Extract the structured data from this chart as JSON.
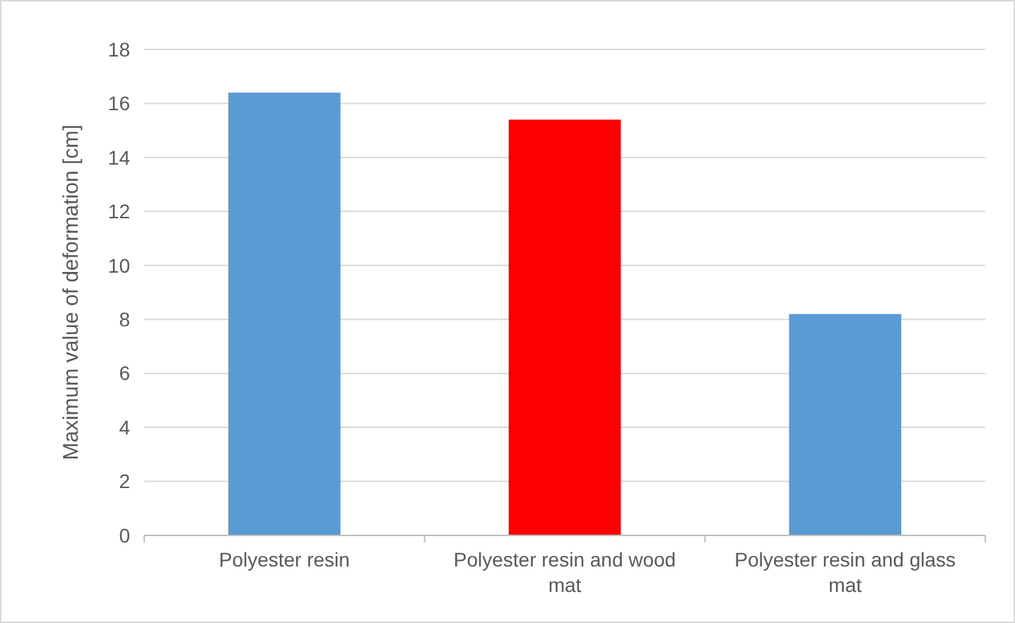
{
  "chart_data": {
    "type": "bar",
    "ylabel": "Maximum value of deformation [cm]",
    "categories": [
      "Polyester resin",
      "Polyester resin and wood mat",
      "Polyester resin and glass mat"
    ],
    "values": [
      16.4,
      15.4,
      8.2
    ],
    "colors": [
      "#5b9bd5",
      "#ff0000",
      "#5b9bd5"
    ],
    "ylim": [
      0,
      18
    ],
    "yticks": [
      0,
      2,
      4,
      6,
      8,
      10,
      12,
      14,
      16,
      18
    ],
    "grid": "y"
  }
}
